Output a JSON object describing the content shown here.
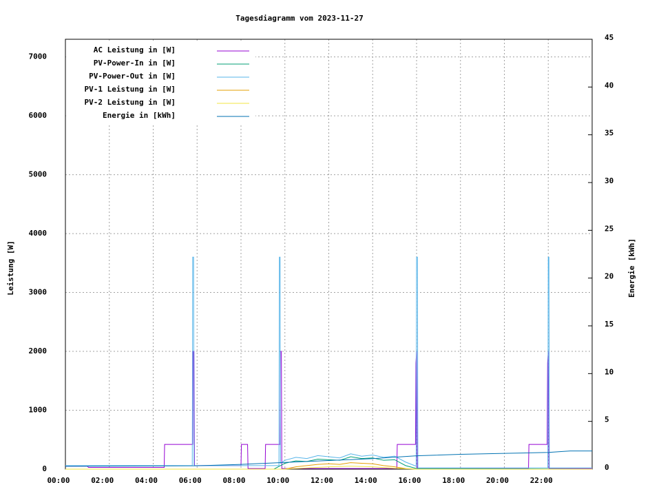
{
  "chart_data": {
    "type": "line",
    "title": "Tagesdiagramm vom 2023-11-27",
    "ylabel": "Leistung [W]",
    "y2label": "Energie [kWh]",
    "xlim": [
      0,
      24
    ],
    "ylim": [
      0,
      7300
    ],
    "y2lim": [
      0,
      45
    ],
    "xticks": [
      {
        "value": 0,
        "label": "00:00"
      },
      {
        "value": 2,
        "label": "02:00"
      },
      {
        "value": 4,
        "label": "04:00"
      },
      {
        "value": 6,
        "label": "06:00"
      },
      {
        "value": 8,
        "label": "08:00"
      },
      {
        "value": 10,
        "label": "10:00"
      },
      {
        "value": 12,
        "label": "12:00"
      },
      {
        "value": 14,
        "label": "14:00"
      },
      {
        "value": 16,
        "label": "16:00"
      },
      {
        "value": 18,
        "label": "18:00"
      },
      {
        "value": 20,
        "label": "20:00"
      },
      {
        "value": 22,
        "label": "22:00"
      }
    ],
    "yticks": [
      0,
      1000,
      2000,
      3000,
      4000,
      5000,
      6000,
      7000
    ],
    "y2ticks": [
      0,
      5,
      10,
      15,
      20,
      25,
      30,
      35,
      40,
      45
    ],
    "grid": true,
    "legend": "top-left",
    "series": [
      {
        "name": "AC Leistung in [W]",
        "color": "#9400d3",
        "x": [
          0,
          1,
          1.05,
          4.5,
          4.52,
          5.8,
          5.82,
          5.86,
          5.88,
          8.0,
          8.02,
          8.3,
          8.32,
          9.1,
          9.12,
          9.78,
          9.8,
          9.84,
          9.86,
          15.1,
          15.12,
          15.95,
          15.97,
          16.0,
          16.03,
          21.1,
          21.12,
          21.95,
          21.97,
          22.0,
          22.03,
          24
        ],
        "values": [
          50,
          50,
          30,
          30,
          420,
          420,
          2000,
          2000,
          60,
          60,
          420,
          420,
          10,
          10,
          420,
          420,
          2000,
          2000,
          10,
          10,
          420,
          420,
          1800,
          2000,
          10,
          10,
          420,
          420,
          1800,
          2000,
          10,
          10
        ]
      },
      {
        "name": "PV-Power-In in [W]",
        "color": "#009e73",
        "x": [
          0,
          9.5,
          10,
          10.5,
          11,
          11.5,
          12,
          12.5,
          13,
          13.5,
          14,
          14.5,
          15,
          15.5,
          16,
          24
        ],
        "values": [
          0,
          0,
          100,
          140,
          130,
          170,
          160,
          150,
          210,
          180,
          190,
          150,
          160,
          60,
          10,
          0
        ]
      },
      {
        "name": "PV-Power-Out in [W]",
        "color": "#56b4e9",
        "x": [
          0,
          5.78,
          5.8,
          5.84,
          5.86,
          9.73,
          9.75,
          9.78,
          9.8,
          10,
          10.5,
          11,
          11.5,
          12,
          12.5,
          13,
          13.5,
          14,
          14.5,
          15,
          15.5,
          15.98,
          16.0,
          16.04,
          16.06,
          21.98,
          22.0,
          22.03,
          22.05,
          24
        ],
        "values": [
          60,
          60,
          3600,
          3600,
          60,
          60,
          3600,
          3600,
          100,
          150,
          200,
          180,
          230,
          210,
          190,
          260,
          220,
          240,
          200,
          220,
          120,
          50,
          3600,
          3600,
          20,
          20,
          3600,
          3600,
          20,
          20
        ]
      },
      {
        "name": "PV-1 Leistung in [W]",
        "color": "#e69f00",
        "x": [
          0,
          10,
          10.5,
          11,
          11.5,
          12,
          12.5,
          13,
          13.5,
          14,
          14.5,
          15,
          15.5,
          16,
          24
        ],
        "values": [
          0,
          0,
          40,
          60,
          80,
          90,
          80,
          110,
          100,
          90,
          60,
          40,
          10,
          0,
          0
        ]
      },
      {
        "name": "PV-2 Leistung in [W]",
        "color": "#f0e442",
        "x": [
          0,
          10,
          11,
          12,
          13,
          14,
          15,
          16,
          24
        ],
        "values": [
          0,
          0,
          20,
          40,
          50,
          40,
          15,
          0,
          0
        ]
      },
      {
        "name": "Energie in [kWh]",
        "color": "#0072b2",
        "axis": "y2",
        "x": [
          0,
          6,
          8,
          10,
          12,
          14,
          16,
          18,
          20,
          22,
          23,
          24
        ],
        "values": [
          0.3,
          0.35,
          0.5,
          0.7,
          0.9,
          1.1,
          1.4,
          1.55,
          1.65,
          1.75,
          1.9,
          1.9
        ]
      }
    ]
  }
}
